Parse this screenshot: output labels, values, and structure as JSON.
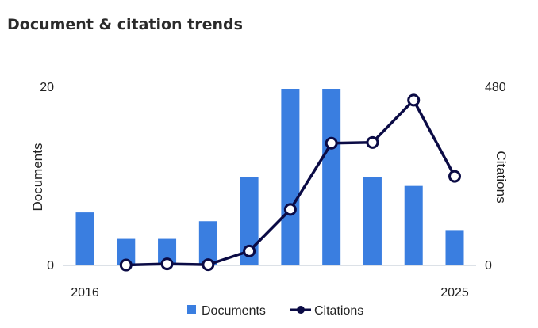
{
  "widget": {
    "title": "Document & citation trends"
  },
  "colors": {
    "bars": "#3a7ee0",
    "line": "#0b0b45",
    "marker_fill": "#ffffff",
    "baseline": "#b9c3cf"
  },
  "chart_data": {
    "type": "bar",
    "x": [
      2016,
      2017,
      2018,
      2019,
      2020,
      2021,
      2022,
      2023,
      2024,
      2025
    ],
    "x_tick_labels": [
      "2016",
      "",
      "",
      "",
      "",
      "",
      "",
      "",
      "",
      "2025"
    ],
    "series": [
      {
        "name": "Documents",
        "type": "bar",
        "axis": "left",
        "values": [
          6,
          3,
          3,
          5,
          10,
          20,
          20,
          10,
          9,
          4
        ]
      },
      {
        "name": "Citations",
        "type": "line",
        "axis": "right",
        "values": [
          null,
          1,
          4,
          2,
          39,
          152,
          332,
          334,
          449,
          242
        ]
      }
    ],
    "ylabel": "Documents",
    "ylim": [
      0,
      20
    ],
    "y_ticks": [
      "0",
      "20"
    ],
    "y2label": "Citations",
    "y2lim": [
      0,
      480
    ],
    "y2_ticks": [
      "0",
      "480"
    ],
    "legend": [
      "Documents",
      "Citations"
    ],
    "legend_position": "bottom",
    "grid": false
  }
}
